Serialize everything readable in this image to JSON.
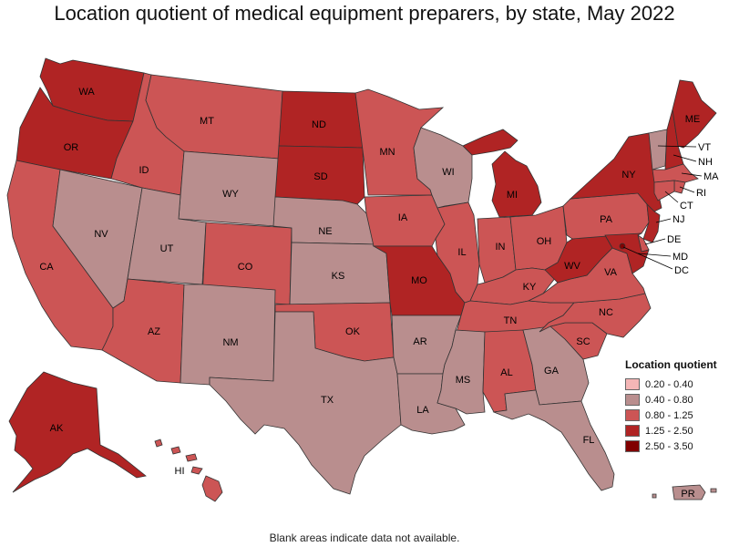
{
  "title": "Location quotient of medical equipment preparers, by state, May 2022",
  "footer": "Blank areas indicate data not available.",
  "legend": {
    "title": "Location quotient",
    "items": [
      {
        "range": "0.20 - 0.40",
        "color": "#f4b6b6"
      },
      {
        "range": "0.40 - 0.80",
        "color": "#b98e8e"
      },
      {
        "range": "0.80 - 1.25",
        "color": "#cc5555"
      },
      {
        "range": "1.25 - 2.50",
        "color": "#b02424"
      },
      {
        "range": "2.50 - 3.50",
        "color": "#800000"
      }
    ]
  },
  "states": [
    {
      "abbr": "WA",
      "class": "1.25 - 2.50"
    },
    {
      "abbr": "OR",
      "class": "1.25 - 2.50"
    },
    {
      "abbr": "CA",
      "class": "0.80 - 1.25"
    },
    {
      "abbr": "NV",
      "class": "0.40 - 0.80"
    },
    {
      "abbr": "ID",
      "class": "0.80 - 1.25"
    },
    {
      "abbr": "MT",
      "class": "0.80 - 1.25"
    },
    {
      "abbr": "WY",
      "class": "0.40 - 0.80"
    },
    {
      "abbr": "UT",
      "class": "0.40 - 0.80"
    },
    {
      "abbr": "AZ",
      "class": "0.80 - 1.25"
    },
    {
      "abbr": "CO",
      "class": "0.80 - 1.25"
    },
    {
      "abbr": "NM",
      "class": "0.40 - 0.80"
    },
    {
      "abbr": "ND",
      "class": "1.25 - 2.50"
    },
    {
      "abbr": "SD",
      "class": "1.25 - 2.50"
    },
    {
      "abbr": "NE",
      "class": "0.40 - 0.80"
    },
    {
      "abbr": "KS",
      "class": "0.40 - 0.80"
    },
    {
      "abbr": "OK",
      "class": "0.80 - 1.25"
    },
    {
      "abbr": "TX",
      "class": "0.40 - 0.80"
    },
    {
      "abbr": "MN",
      "class": "0.80 - 1.25"
    },
    {
      "abbr": "IA",
      "class": "0.80 - 1.25"
    },
    {
      "abbr": "MO",
      "class": "1.25 - 2.50"
    },
    {
      "abbr": "AR",
      "class": "0.40 - 0.80"
    },
    {
      "abbr": "LA",
      "class": "0.40 - 0.80"
    },
    {
      "abbr": "WI",
      "class": "0.40 - 0.80"
    },
    {
      "abbr": "IL",
      "class": "0.80 - 1.25"
    },
    {
      "abbr": "MS",
      "class": "0.40 - 0.80"
    },
    {
      "abbr": "MI",
      "class": "1.25 - 2.50"
    },
    {
      "abbr": "IN",
      "class": "0.80 - 1.25"
    },
    {
      "abbr": "OH",
      "class": "0.80 - 1.25"
    },
    {
      "abbr": "KY",
      "class": "0.80 - 1.25"
    },
    {
      "abbr": "TN",
      "class": "0.80 - 1.25"
    },
    {
      "abbr": "AL",
      "class": "0.80 - 1.25"
    },
    {
      "abbr": "GA",
      "class": "0.40 - 0.80"
    },
    {
      "abbr": "FL",
      "class": "0.40 - 0.80"
    },
    {
      "abbr": "SC",
      "class": "0.80 - 1.25"
    },
    {
      "abbr": "NC",
      "class": "0.80 - 1.25"
    },
    {
      "abbr": "VA",
      "class": "0.80 - 1.25"
    },
    {
      "abbr": "WV",
      "class": "1.25 - 2.50"
    },
    {
      "abbr": "PA",
      "class": "0.80 - 1.25"
    },
    {
      "abbr": "NY",
      "class": "1.25 - 2.50"
    },
    {
      "abbr": "VT",
      "class": "0.40 - 0.80"
    },
    {
      "abbr": "NH",
      "class": "1.25 - 2.50"
    },
    {
      "abbr": "ME",
      "class": "1.25 - 2.50"
    },
    {
      "abbr": "MA",
      "class": "0.80 - 1.25"
    },
    {
      "abbr": "RI",
      "class": "0.80 - 1.25"
    },
    {
      "abbr": "CT",
      "class": "0.80 - 1.25"
    },
    {
      "abbr": "NJ",
      "class": "1.25 - 2.50"
    },
    {
      "abbr": "DE",
      "class": "0.80 - 1.25"
    },
    {
      "abbr": "MD",
      "class": "1.25 - 2.50"
    },
    {
      "abbr": "DC",
      "class": "2.50 - 3.50"
    },
    {
      "abbr": "AK",
      "class": "1.25 - 2.50"
    },
    {
      "abbr": "HI",
      "class": "0.80 - 1.25"
    },
    {
      "abbr": "PR",
      "class": "0.40 - 0.80"
    }
  ]
}
